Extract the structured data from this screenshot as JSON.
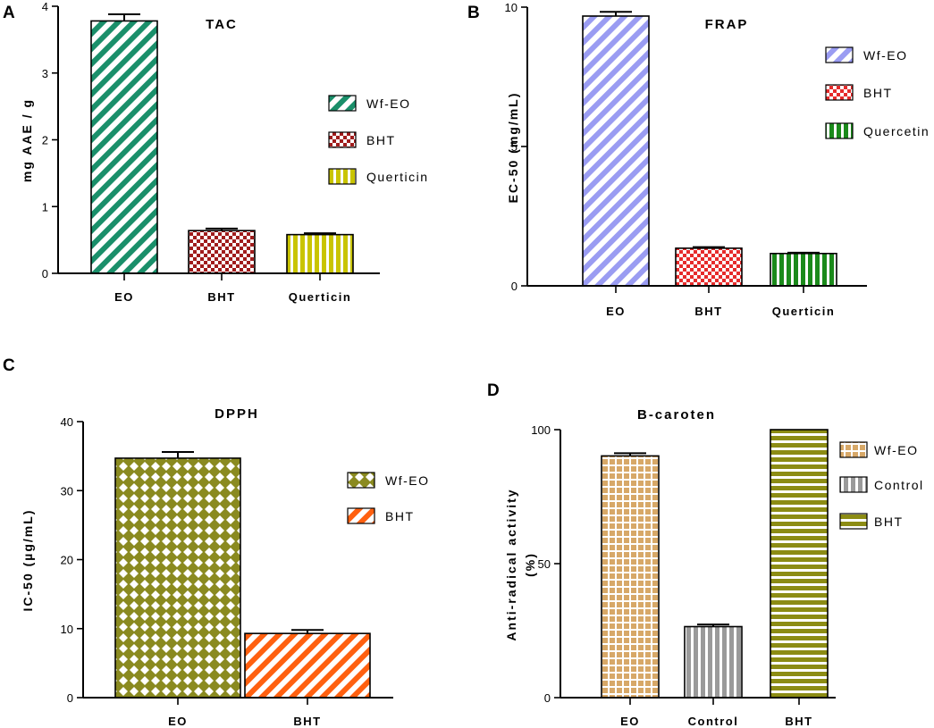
{
  "colors": {
    "wf_eo_a": "#1a8f6a",
    "bht_a": "#a01c1c",
    "quer_a": "#c9c400",
    "wf_eo_b": "#9a9cf2",
    "bht_b": "#e62b2b",
    "quer_b": "#1b8a1b",
    "wf_eo_c": "#8a8a20",
    "bht_c": "#ff6010",
    "wf_eo_d": "#d7a868",
    "control_d": "#9a9a9a",
    "bht_d": "#8c8c14"
  },
  "chart_data": [
    {
      "panel": "A",
      "type": "bar",
      "title": "TAC",
      "ylabel": "mg AAE / g",
      "xlabel": "",
      "categories": [
        "EO",
        "BHT",
        "Querticin"
      ],
      "values": [
        3.78,
        0.64,
        0.58
      ],
      "errors": [
        0.1,
        0.03,
        0.02
      ],
      "ylim": [
        0,
        4
      ],
      "yticks": [
        "0",
        "1",
        "2",
        "3",
        "4"
      ],
      "legend": [
        "Wf-EO",
        "BHT",
        "Querticin"
      ],
      "legend_position": "right"
    },
    {
      "panel": "B",
      "type": "bar",
      "title": "FRAP",
      "ylabel": "EC-50 (mg/mL)",
      "xlabel": "",
      "categories": [
        "EO",
        "BHT",
        "Querticin"
      ],
      "values": [
        9.68,
        1.35,
        1.16
      ],
      "errors": [
        0.15,
        0.04,
        0.03
      ],
      "ylim": [
        0,
        10
      ],
      "yticks": [
        "0",
        "5",
        "10"
      ],
      "legend": [
        "Wf-EO",
        "BHT",
        "Quercetin"
      ],
      "legend_position": "top-right"
    },
    {
      "panel": "C",
      "type": "bar",
      "title": "DPPH",
      "ylabel": "IC-50 (µg/mL)",
      "xlabel": "",
      "categories": [
        "EO",
        "BHT"
      ],
      "values": [
        34.7,
        9.3
      ],
      "errors": [
        0.9,
        0.5
      ],
      "ylim": [
        0,
        40
      ],
      "yticks": [
        "0",
        "10",
        "20",
        "30",
        "40"
      ],
      "legend": [
        "Wf-EO",
        "BHT"
      ],
      "legend_position": "right"
    },
    {
      "panel": "D",
      "type": "bar",
      "title": "B-caroten",
      "ylabel_line1": "Anti-radical activity",
      "ylabel_line2": "(%)",
      "xlabel": "",
      "categories": [
        "EO",
        "Control",
        "BHT"
      ],
      "values": [
        90.2,
        26.5,
        100
      ],
      "errors": [
        1.0,
        0.8,
        0
      ],
      "ylim": [
        0,
        100
      ],
      "yticks": [
        "0",
        "50",
        "100"
      ],
      "legend": [
        "Wf-EO",
        "Control",
        "BHT"
      ],
      "legend_position": "top-right"
    }
  ]
}
